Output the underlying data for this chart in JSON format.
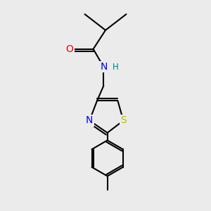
{
  "background_color": "#ebebeb",
  "atom_colors": {
    "O": "#ff0000",
    "N": "#0000ee",
    "H": "#008080",
    "S": "#bbbb00",
    "C": "#000000"
  },
  "bond_color": "#000000",
  "bond_width": 1.5,
  "font_size_atoms": 10,
  "font_size_h": 8.5,
  "xlim": [
    0,
    10
  ],
  "ylim": [
    0,
    11
  ]
}
